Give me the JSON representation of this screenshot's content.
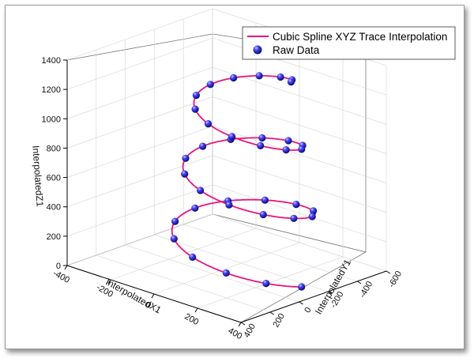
{
  "chart_data": {
    "type": "scatter",
    "title": "",
    "xlabel": "InterpolatedX1",
    "ylabel": "InterpolatedY1",
    "zlabel": "InterpolatedZ1",
    "xlim": [
      -400,
      400
    ],
    "ylim": [
      -600,
      400
    ],
    "zlim": [
      0,
      1400
    ],
    "x_ticks": [
      "-400",
      "-200",
      "0",
      "200",
      "400"
    ],
    "y_ticks": [
      "-600",
      "-400",
      "-200",
      "0",
      "200",
      "400"
    ],
    "z_ticks": [
      "0",
      "200",
      "400",
      "600",
      "800",
      "1000",
      "1200",
      "1400"
    ],
    "grid": true,
    "legend_position": "top-right",
    "series": [
      {
        "name": "Cubic Spline XYZ Trace Interpolation",
        "type": "line",
        "color": "#e8157d"
      },
      {
        "name": "Raw Data",
        "type": "scatter",
        "color": "#1a14c8"
      }
    ]
  }
}
